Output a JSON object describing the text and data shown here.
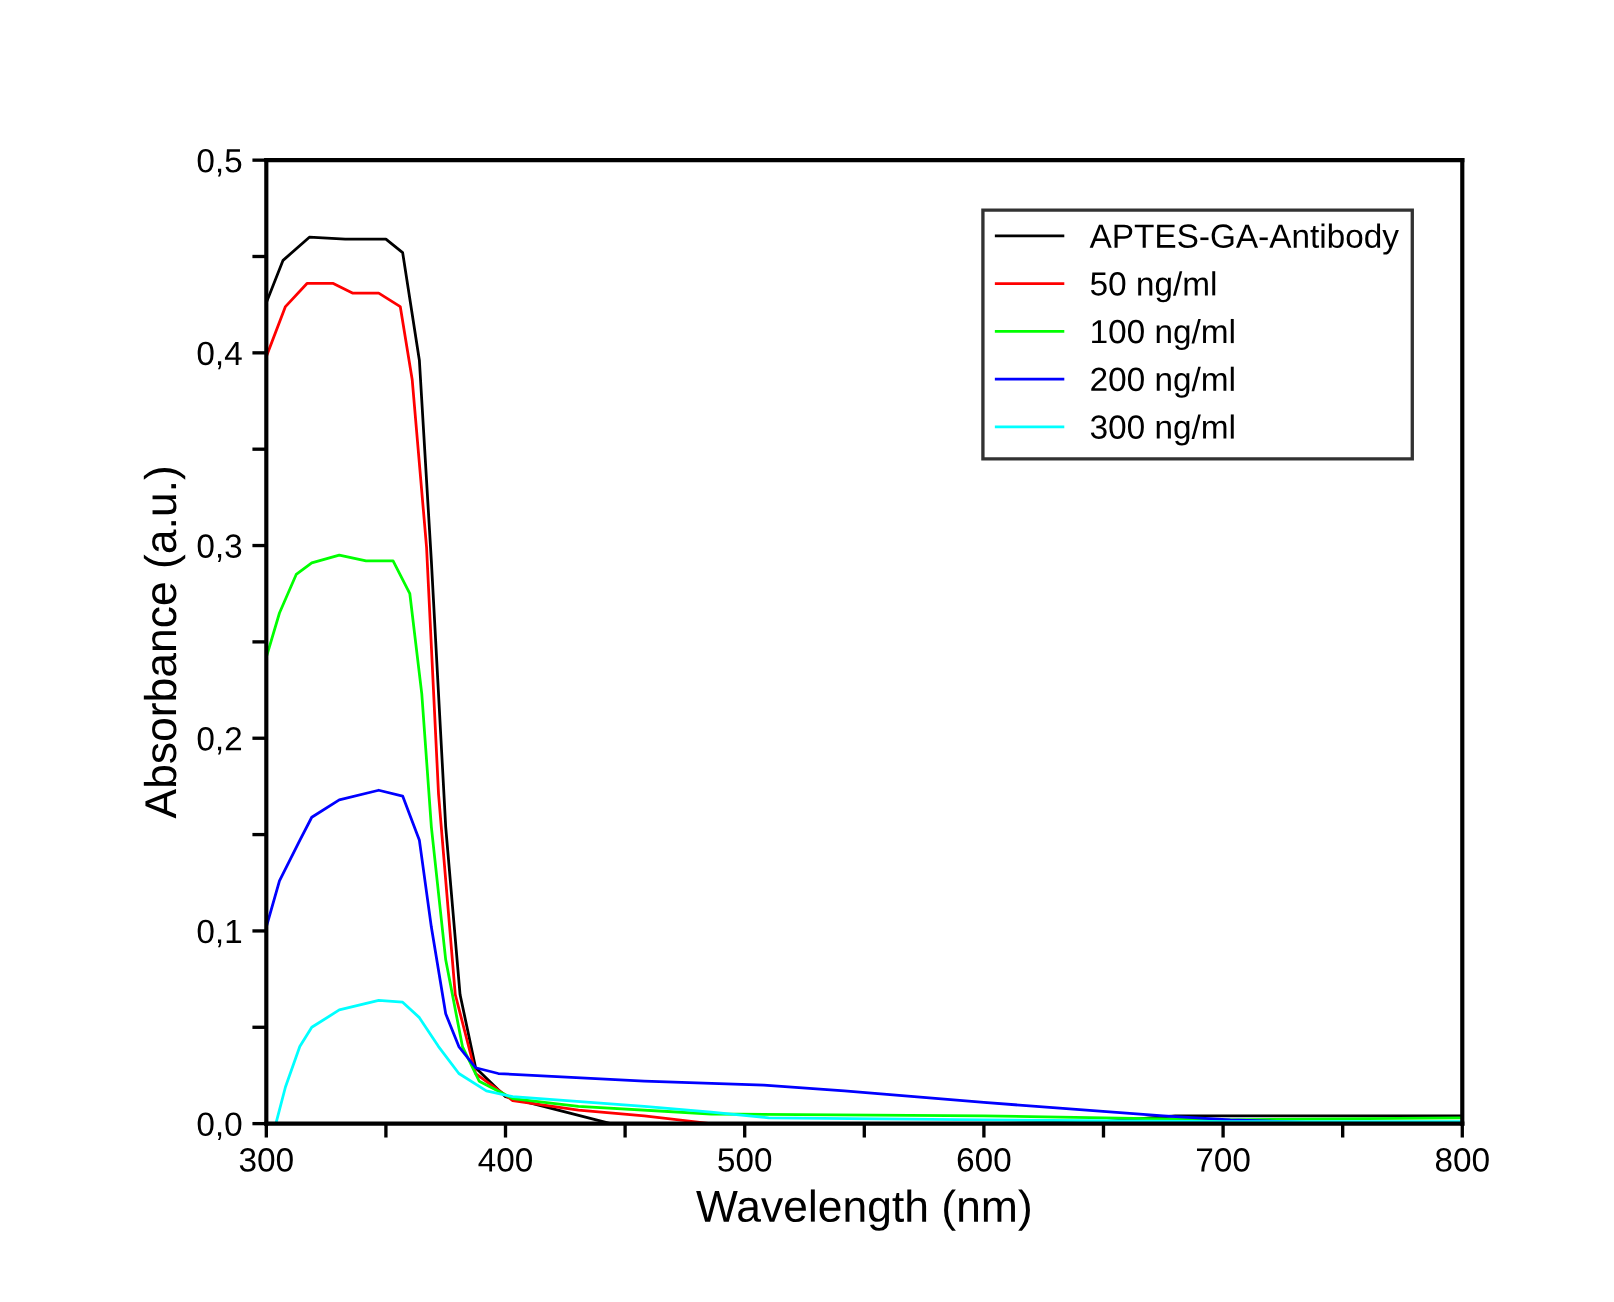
{
  "chart_data": {
    "type": "line",
    "xlabel": "Wavelength (nm)",
    "ylabel": "Absorbance (a.u.)",
    "xlim": [
      300,
      800
    ],
    "ylim": [
      0,
      0.5
    ],
    "xticks": [
      300,
      {
        "value": 350,
        "label": null
      },
      400,
      {
        "value": 450,
        "label": null
      },
      500,
      {
        "value": 550,
        "label": null
      },
      600,
      {
        "value": 650,
        "label": null
      },
      700,
      {
        "value": 750,
        "label": null
      },
      800
    ],
    "yticks": [
      {
        "value": 0,
        "label": "0,0"
      },
      {
        "value": 0.05,
        "label": null
      },
      {
        "value": 0.1,
        "label": "0,1"
      },
      {
        "value": 0.15,
        "label": null
      },
      {
        "value": 0.2,
        "label": "0,2"
      },
      {
        "value": 0.25,
        "label": null
      },
      {
        "value": 0.3,
        "label": "0,3"
      },
      {
        "value": 0.35,
        "label": null
      },
      {
        "value": 0.4,
        "label": "0,4"
      },
      {
        "value": 0.45,
        "label": null
      },
      {
        "value": 0.5,
        "label": "0,5"
      }
    ],
    "grid": false,
    "legend": "top right",
    "line_style": "solid",
    "marker": "none",
    "series": [
      {
        "name": "APTES-GA-Antibody",
        "color": "#000000",
        "x": [
          300,
          307,
          318,
          333,
          350,
          357,
          364,
          369,
          375,
          381,
          387.5,
          400,
          422,
          444,
          500,
          600,
          650,
          680,
          700,
          750,
          800
        ],
        "values": [
          0.426,
          0.448,
          0.46,
          0.459,
          0.459,
          0.452,
          0.396,
          0.292,
          0.154,
          0.067,
          0.029,
          0.014,
          0.007,
          0.0,
          0.0,
          0.0,
          0.001,
          0.004,
          0.004,
          0.004,
          0.004
        ]
      },
      {
        "name": "50 ng/ml",
        "color": "#ff0000",
        "x": [
          300,
          308,
          317,
          328,
          336,
          347,
          356,
          361,
          367,
          372,
          379,
          387.5,
          403,
          430.5,
          458,
          486
        ],
        "values": [
          0.398,
          0.424,
          0.436,
          0.436,
          0.431,
          0.431,
          0.424,
          0.386,
          0.299,
          0.171,
          0.067,
          0.026,
          0.012,
          0.007,
          0.004,
          0.0
        ]
      },
      {
        "name": "100 ng/ml",
        "color": "#00ff00",
        "x": [
          300,
          305.5,
          312.5,
          319,
          330.5,
          341.7,
          353,
          360,
          365,
          369,
          375,
          382,
          389,
          403,
          430.5,
          486,
          600,
          700,
          800
        ],
        "values": [
          0.242,
          0.265,
          0.285,
          0.291,
          0.295,
          0.292,
          0.292,
          0.275,
          0.223,
          0.154,
          0.085,
          0.04,
          0.022,
          0.013,
          0.009,
          0.005,
          0.004,
          0.002,
          0.003
        ]
      },
      {
        "name": "200 ng/ml",
        "color": "#0000ff",
        "x": [
          300,
          305.5,
          314,
          319,
          330.5,
          347,
          357,
          364,
          369,
          375,
          380.5,
          387.5,
          397,
          458,
          508,
          541.7,
          600,
          675,
          703,
          750,
          800
        ],
        "values": [
          0.102,
          0.126,
          0.147,
          0.159,
          0.168,
          0.173,
          0.17,
          0.147,
          0.102,
          0.057,
          0.04,
          0.029,
          0.026,
          0.022,
          0.02,
          0.017,
          0.011,
          0.004,
          0.002,
          0.0,
          0.0
        ]
      },
      {
        "name": "300 ng/ml",
        "color": "#00ffff",
        "x": [
          304,
          308,
          314,
          319,
          330.5,
          347,
          357,
          364,
          372,
          380.5,
          392,
          403,
          458,
          486,
          510,
          600,
          700,
          800
        ],
        "values": [
          0.0,
          0.019,
          0.04,
          0.05,
          0.059,
          0.064,
          0.063,
          0.055,
          0.04,
          0.026,
          0.017,
          0.014,
          0.009,
          0.006,
          0.003,
          0.002,
          0.001,
          0.001
        ]
      }
    ]
  }
}
